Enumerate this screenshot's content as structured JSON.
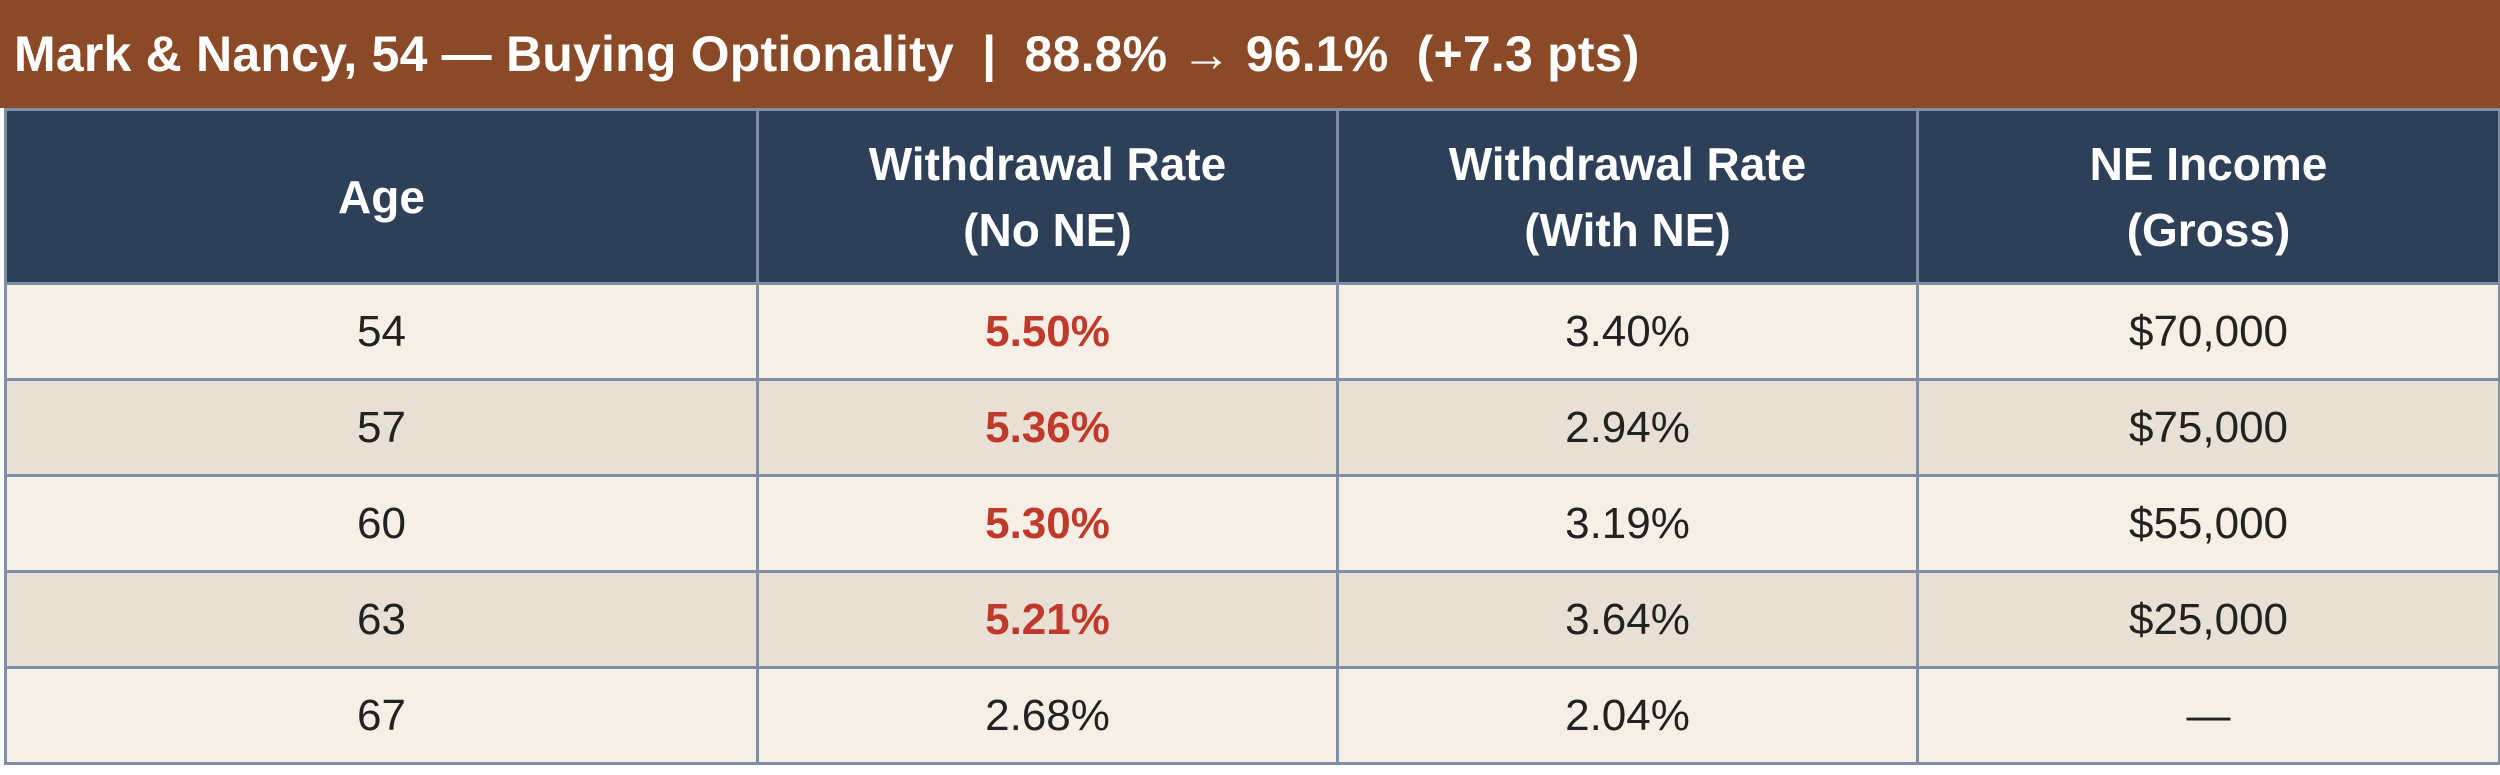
{
  "title": "Mark & Nancy, 54 — Buying Optionality  |  88.8% → 96.1%  (+7.3 pts)",
  "colors": {
    "title_bar": "#8b4a27",
    "header_bg": "#2e4057",
    "row_light": "#f6efe5",
    "row_dark": "#e9e0d5",
    "highlight_text": "#c0392b",
    "grid": "#7f8fa6"
  },
  "table": {
    "headers": [
      {
        "line1": "Age",
        "line2": ""
      },
      {
        "line1": "Withdrawal Rate",
        "line2": "(No NE)"
      },
      {
        "line1": "Withdrawal Rate",
        "line2": "(With NE)"
      },
      {
        "line1": "NE Income",
        "line2": "(Gross)"
      }
    ],
    "rows": [
      {
        "age": "54",
        "rate_no_ne": "5.50%",
        "rate_no_ne_highlight": true,
        "rate_with_ne": "3.40%",
        "ne_income": "$70,000"
      },
      {
        "age": "57",
        "rate_no_ne": "5.36%",
        "rate_no_ne_highlight": true,
        "rate_with_ne": "2.94%",
        "ne_income": "$75,000"
      },
      {
        "age": "60",
        "rate_no_ne": "5.30%",
        "rate_no_ne_highlight": true,
        "rate_with_ne": "3.19%",
        "ne_income": "$55,000"
      },
      {
        "age": "63",
        "rate_no_ne": "5.21%",
        "rate_no_ne_highlight": true,
        "rate_with_ne": "3.64%",
        "ne_income": "$25,000"
      },
      {
        "age": "67",
        "rate_no_ne": "2.68%",
        "rate_no_ne_highlight": false,
        "rate_with_ne": "2.04%",
        "ne_income": "—"
      }
    ]
  }
}
